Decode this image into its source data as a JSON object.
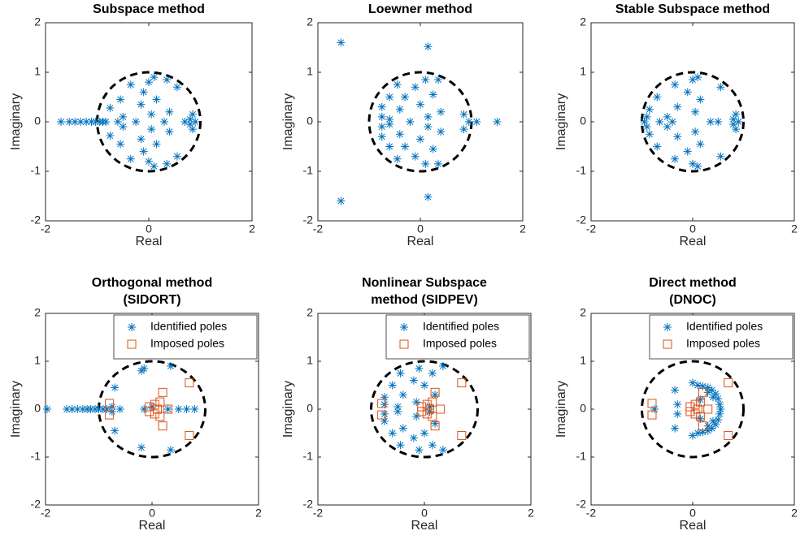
{
  "chart_data": [
    {
      "type": "scatter",
      "title": [
        "Subspace method"
      ],
      "xlabel": "Real",
      "ylabel": "Imaginary",
      "xlim": [
        -2,
        2
      ],
      "ylim": [
        -2,
        2
      ],
      "xticks": [
        -2,
        0,
        2
      ],
      "yticks": [
        -2,
        -1,
        0,
        1,
        2
      ],
      "reference_circle": "dashed",
      "series": [
        {
          "color": "#0072bd",
          "marker": "asterisk",
          "x": [
            -1.7,
            -1.54,
            -1.43,
            -1.32,
            -1.21,
            -1.11,
            -1.03,
            -0.95,
            -0.89,
            -0.83,
            -0.75,
            -0.75,
            -0.55,
            -0.55,
            -0.5,
            -0.5,
            -0.6,
            -0.35,
            -0.35,
            -0.25,
            -0.15,
            -0.15,
            -0.1,
            -0.1,
            0,
            0,
            0.05,
            0.05,
            0.1,
            0.1,
            0.15,
            0.15,
            0.3,
            0.4,
            0.4,
            0.35,
            0.35,
            0.7,
            0.8,
            0.8,
            0.85,
            0.85,
            0.9,
            0.55,
            0.55
          ],
          "values": [
            0,
            0,
            0,
            0,
            0,
            0,
            0,
            0,
            0,
            0,
            0.28,
            -0.28,
            0.45,
            -0.45,
            0.1,
            -0.1,
            0,
            0.75,
            -0.75,
            0,
            0.35,
            -0.35,
            0.6,
            -0.6,
            0.8,
            -0.8,
            0.15,
            -0.15,
            0.9,
            -0.9,
            0.45,
            -0.45,
            0,
            0.2,
            -0.2,
            0.85,
            -0.85,
            0,
            0.05,
            -0.05,
            0.15,
            -0.15,
            0,
            0.7,
            -0.7
          ]
        }
      ]
    },
    {
      "type": "scatter",
      "title": [
        "Loewner method"
      ],
      "xlabel": "Real",
      "ylabel": "Imaginary",
      "xlim": [
        -2,
        2
      ],
      "ylim": [
        -2,
        2
      ],
      "xticks": [
        -2,
        0,
        2
      ],
      "yticks": [
        -2,
        -1,
        0,
        1,
        2
      ],
      "reference_circle": "dashed",
      "series": [
        {
          "color": "#0072bd",
          "marker": "asterisk",
          "x": [
            -1.55,
            -1.55,
            0.15,
            0.15,
            1.5,
            1.1,
            0.85,
            0.85,
            0.95,
            -0.75,
            -0.75,
            -0.75,
            -0.75,
            -0.6,
            -0.6,
            -0.45,
            -0.45,
            -0.4,
            -0.4,
            -0.3,
            -0.3,
            -0.2,
            -0.1,
            -0.1,
            0,
            0,
            0.1,
            0.1,
            0.15,
            0.15,
            0.25,
            0.25,
            0.35,
            0.35,
            0.4,
            0.4,
            -0.6,
            -0.6
          ],
          "values": [
            1.6,
            -1.6,
            1.52,
            -1.52,
            0,
            0,
            0.15,
            -0.15,
            0,
            0.3,
            -0.3,
            0.1,
            -0.1,
            0.5,
            -0.5,
            0.75,
            -0.75,
            0.25,
            -0.25,
            0.5,
            -0.5,
            0,
            0.7,
            -0.7,
            0.35,
            -0.35,
            0.85,
            -0.85,
            0.1,
            -0.1,
            0.55,
            -0.55,
            0.85,
            -0.85,
            0.2,
            -0.2,
            0.05,
            -0.05
          ]
        }
      ]
    },
    {
      "type": "scatter",
      "title": [
        "Stable Subspace method"
      ],
      "xlabel": "Real",
      "ylabel": "Imaginary",
      "xlim": [
        -2,
        2
      ],
      "ylim": [
        -2,
        2
      ],
      "xticks": [
        -2,
        0,
        2
      ],
      "yticks": [
        -2,
        -1,
        0,
        1,
        2
      ],
      "reference_circle": "dashed",
      "series": [
        {
          "color": "#0072bd",
          "marker": "asterisk",
          "x": [
            -0.95,
            -0.9,
            -0.9,
            -0.85,
            -0.85,
            -0.7,
            -0.7,
            -0.65,
            -0.5,
            -0.5,
            -0.35,
            -0.35,
            -0.4,
            -0.3,
            -0.3,
            -0.1,
            -0.1,
            0,
            0,
            0.05,
            0.05,
            0.15,
            0.15,
            0.1,
            0.1,
            0.35,
            0.55,
            0.55,
            0.5,
            0.8,
            0.8,
            0.85,
            0.85,
            0.9
          ],
          "values": [
            0,
            0.1,
            -0.1,
            0.25,
            -0.25,
            0.5,
            -0.5,
            0,
            0.1,
            -0.1,
            0.75,
            -0.75,
            0,
            0.3,
            -0.3,
            0.6,
            -0.6,
            0.85,
            -0.85,
            0.2,
            -0.2,
            0.45,
            -0.45,
            0.9,
            -0.9,
            0,
            0.7,
            -0.7,
            0,
            0.05,
            -0.05,
            0.15,
            -0.15,
            0
          ]
        }
      ]
    },
    {
      "type": "scatter",
      "title": [
        "Orthogonal method",
        "(SIDORT)"
      ],
      "xlabel": "Real",
      "ylabel": "Imaginary",
      "xlim": [
        -2,
        2
      ],
      "ylim": [
        -2,
        2
      ],
      "xticks": [
        -2,
        0,
        2
      ],
      "yticks": [
        -2,
        -1,
        0,
        1,
        2
      ],
      "reference_circle": "dashed",
      "legend": "upper right",
      "series": [
        {
          "name": "Identified poles",
          "color": "#0072bd",
          "marker": "asterisk",
          "x": [
            -1.97,
            -1.6,
            -1.5,
            -1.4,
            -1.3,
            -1.22,
            -1.15,
            -1.07,
            -1.0,
            -0.92,
            -0.85,
            -0.7,
            -0.7,
            -0.6,
            -0.2,
            -0.2,
            -0.15,
            0.35,
            0.35,
            0.3,
            0.5,
            0.65,
            0.8,
            -0.75,
            -0.75,
            0,
            -0.15
          ],
          "values": [
            0,
            0,
            0,
            0,
            0,
            0,
            0,
            0,
            0,
            0,
            0,
            0.45,
            -0.45,
            0,
            0.8,
            -0.8,
            0.85,
            0.9,
            -0.85,
            0,
            0,
            0,
            0,
            0.05,
            -0.05,
            0.05,
            0
          ]
        },
        {
          "name": "Imposed poles",
          "color": "#d95319",
          "marker": "square",
          "x": [
            -0.8,
            -0.8,
            -0.05,
            -0.05,
            0.05,
            0.05,
            0.1,
            0.2,
            0.2,
            0.3,
            0.7,
            0.7,
            0.15,
            0.15
          ],
          "values": [
            0.12,
            -0.12,
            0.05,
            -0.05,
            0.1,
            -0.1,
            0,
            0.35,
            -0.35,
            0,
            0.55,
            -0.55,
            0.15,
            -0.15
          ]
        }
      ]
    },
    {
      "type": "scatter",
      "title": [
        "Nonlinear Subspace",
        "method (SIDPEV)"
      ],
      "xlabel": "Real",
      "ylabel": "Imaginary",
      "xlim": [
        -2,
        2
      ],
      "ylim": [
        -2,
        2
      ],
      "xticks": [
        -2,
        0,
        2
      ],
      "yticks": [
        -2,
        -1,
        0,
        1,
        2
      ],
      "reference_circle": "dashed",
      "legend": "upper right",
      "series": [
        {
          "name": "Identified poles",
          "color": "#0072bd",
          "marker": "asterisk",
          "x": [
            -0.75,
            -0.75,
            -0.75,
            -0.75,
            -0.6,
            -0.6,
            -0.5,
            -0.5,
            -0.45,
            -0.45,
            -0.4,
            -0.4,
            -0.2,
            -0.2,
            -0.15,
            -0.15,
            -0.1,
            -0.1,
            0,
            0,
            0.1,
            0.1,
            0.15,
            0.15,
            0.35,
            0.35,
            0.2,
            0.2
          ],
          "values": [
            0.25,
            -0.25,
            0.1,
            -0.1,
            0.5,
            -0.5,
            0.05,
            -0.05,
            0.75,
            -0.75,
            0.3,
            -0.4,
            0.6,
            -0.6,
            0.15,
            -0.15,
            0.85,
            -0.85,
            0.5,
            -0.5,
            0.05,
            -0.05,
            0.75,
            -0.75,
            0.9,
            -0.85,
            0.3,
            -0.3
          ]
        },
        {
          "name": "Imposed poles",
          "color": "#d95319",
          "marker": "square",
          "x": [
            -0.8,
            -0.8,
            -0.05,
            -0.05,
            0.05,
            0.05,
            0.1,
            0.2,
            0.2,
            0.3,
            0.7,
            0.7,
            0.15,
            0.15
          ],
          "values": [
            0.12,
            -0.12,
            0.05,
            -0.05,
            0.1,
            -0.1,
            0,
            0.35,
            -0.35,
            0,
            0.55,
            -0.55,
            0.15,
            -0.15
          ]
        }
      ]
    },
    {
      "type": "scatter",
      "title": [
        "Direct method",
        "(DNOC)"
      ],
      "xlabel": "Real",
      "ylabel": "Imaginary",
      "xlim": [
        -2,
        2
      ],
      "ylim": [
        -2,
        2
      ],
      "xticks": [
        -2,
        0,
        2
      ],
      "yticks": [
        -2,
        -1,
        0,
        1,
        2
      ],
      "reference_circle": "dashed",
      "legend": "upper right",
      "series": [
        {
          "name": "Identified poles",
          "color": "#0072bd",
          "marker": "asterisk",
          "x": [
            -0.75,
            0,
            0,
            -0.35,
            -0.35,
            -0.3,
            -0.3,
            0.1,
            0.1,
            0.2,
            0.2,
            0.3,
            0.3,
            0.38,
            0.38,
            0.45,
            0.45,
            0.5,
            0.5,
            0.53,
            0.53,
            0.55,
            0.4,
            0.4,
            0.3,
            0.3,
            0.15,
            0.15
          ],
          "values": [
            0,
            0.55,
            -0.55,
            0.4,
            -0.4,
            0.1,
            -0.1,
            0.5,
            -0.5,
            0.48,
            -0.48,
            0.45,
            -0.45,
            0.4,
            -0.4,
            0.32,
            -0.32,
            0.22,
            -0.22,
            0.1,
            -0.1,
            0,
            0.25,
            -0.25,
            0.35,
            -0.35,
            0.2,
            -0.2
          ]
        },
        {
          "name": "Imposed poles",
          "color": "#d95319",
          "marker": "square",
          "x": [
            -0.8,
            -0.8,
            -0.05,
            -0.05,
            0.05,
            0.05,
            0.1,
            0.2,
            0.2,
            0.3,
            0.7,
            0.7,
            0.15,
            0.15
          ],
          "values": [
            0.12,
            -0.12,
            0.05,
            -0.05,
            0.1,
            -0.1,
            0,
            0.35,
            -0.35,
            0,
            0.55,
            -0.55,
            0.15,
            -0.15
          ]
        }
      ]
    }
  ]
}
